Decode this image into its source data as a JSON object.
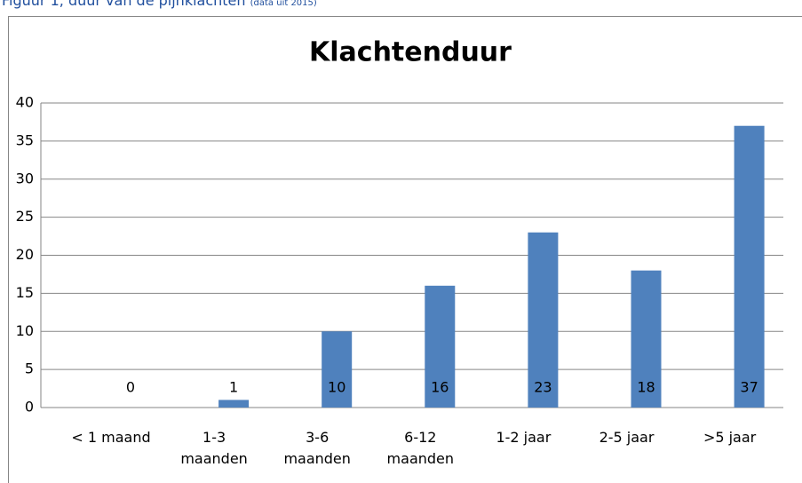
{
  "caption": {
    "text": "Figuur 1, duur van de pijnklachten",
    "note": "(data uit 2015)"
  },
  "chart_data": {
    "type": "bar",
    "title": "Klachtenduur",
    "categories": [
      "< 1 maand",
      "1-3\nmaanden",
      "3-6\nmaanden",
      "6-12\nmaanden",
      "1-2 jaar",
      "2-5 jaar",
      ">5 jaar"
    ],
    "values": [
      0,
      1,
      10,
      16,
      23,
      18,
      37
    ],
    "color": "#4f81bd",
    "ylim": [
      0,
      40
    ],
    "yticks": [
      0,
      5,
      10,
      15,
      20,
      25,
      30,
      35,
      40
    ],
    "grid": true
  }
}
